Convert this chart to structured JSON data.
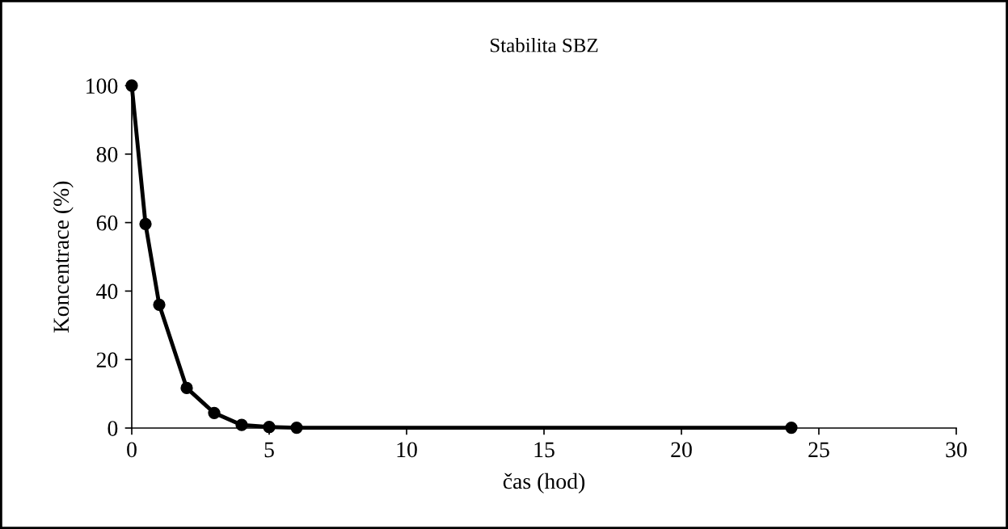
{
  "chart_data": {
    "type": "line",
    "title": "Stabilita SBZ",
    "xlabel": "čas (hod)",
    "ylabel": "Koncentrace (%)",
    "x": [
      0,
      0.5,
      1,
      2,
      3,
      4,
      5,
      6,
      24
    ],
    "series": [
      {
        "color": "#000000",
        "values": [
          100,
          59.6,
          36,
          11.7,
          4.4,
          0.9,
          0.3,
          0.1,
          0.1
        ]
      }
    ],
    "xlim": [
      0,
      30
    ],
    "xticks": [
      0,
      5,
      10,
      15,
      20,
      25,
      30
    ],
    "ylim": [
      0,
      100
    ],
    "yticks": [
      0,
      20,
      40,
      60,
      80,
      100
    ],
    "grid": false,
    "legend": false,
    "marker": "circle",
    "line_style": "solid"
  }
}
